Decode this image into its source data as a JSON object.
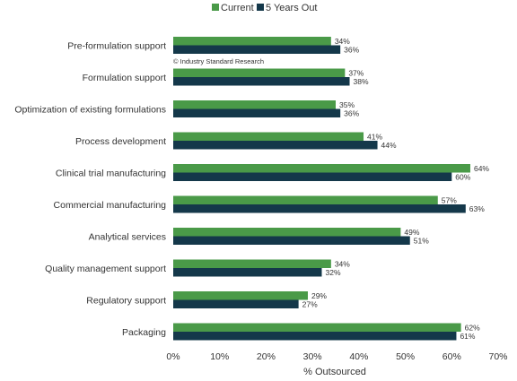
{
  "chart_data": {
    "type": "bar",
    "orientation": "horizontal",
    "categories": [
      "Pre-formulation support",
      "Formulation support",
      "Optimization of existing formulations",
      "Process development",
      "Clinical trial manufacturing",
      "Commercial manufacturing",
      "Analytical services",
      "Quality management support",
      "Regulatory support",
      "Packaging"
    ],
    "series": [
      {
        "name": "Current",
        "color": "#4a9a48",
        "values": [
          34,
          37,
          35,
          41,
          64,
          57,
          49,
          34,
          29,
          62
        ]
      },
      {
        "name": "5 Years Out",
        "color": "#14384a",
        "values": [
          36,
          38,
          36,
          44,
          60,
          63,
          51,
          32,
          27,
          61
        ]
      }
    ],
    "xlabel": "% Outsourced",
    "xlim": [
      0,
      70
    ],
    "xticks": [
      0,
      10,
      20,
      30,
      40,
      50,
      60,
      70
    ],
    "tick_suffix": "%",
    "value_suffix": "%",
    "legend_position": "top-center",
    "grid": false,
    "annotation": "© Industry Standard Research"
  }
}
